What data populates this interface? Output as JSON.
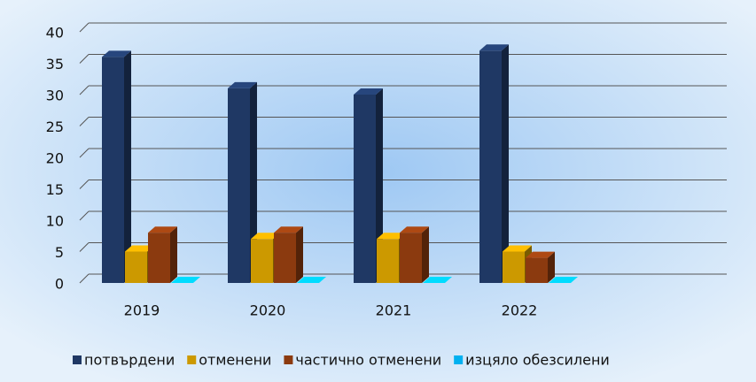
{
  "chart_data": {
    "type": "bar3d",
    "categories": [
      "2019",
      "2020",
      "2021",
      "2022"
    ],
    "series": [
      {
        "name": "потвърдени",
        "color": "#1f3864",
        "values": [
          36,
          31,
          30,
          37
        ]
      },
      {
        "name": "отменени",
        "color": "#cc9900",
        "values": [
          5,
          7,
          7,
          5
        ]
      },
      {
        "name": "частично отменени",
        "color": "#8b3a0f",
        "values": [
          8,
          8,
          8,
          4
        ]
      },
      {
        "name": "изцяло обезсилени",
        "color": "#00b0f0",
        "values": [
          0,
          0,
          0,
          0
        ]
      }
    ],
    "ylim": [
      0,
      40
    ],
    "yticks": [
      0,
      5,
      10,
      15,
      20,
      25,
      30,
      35,
      40
    ],
    "grid": true,
    "legend": "bottom"
  }
}
